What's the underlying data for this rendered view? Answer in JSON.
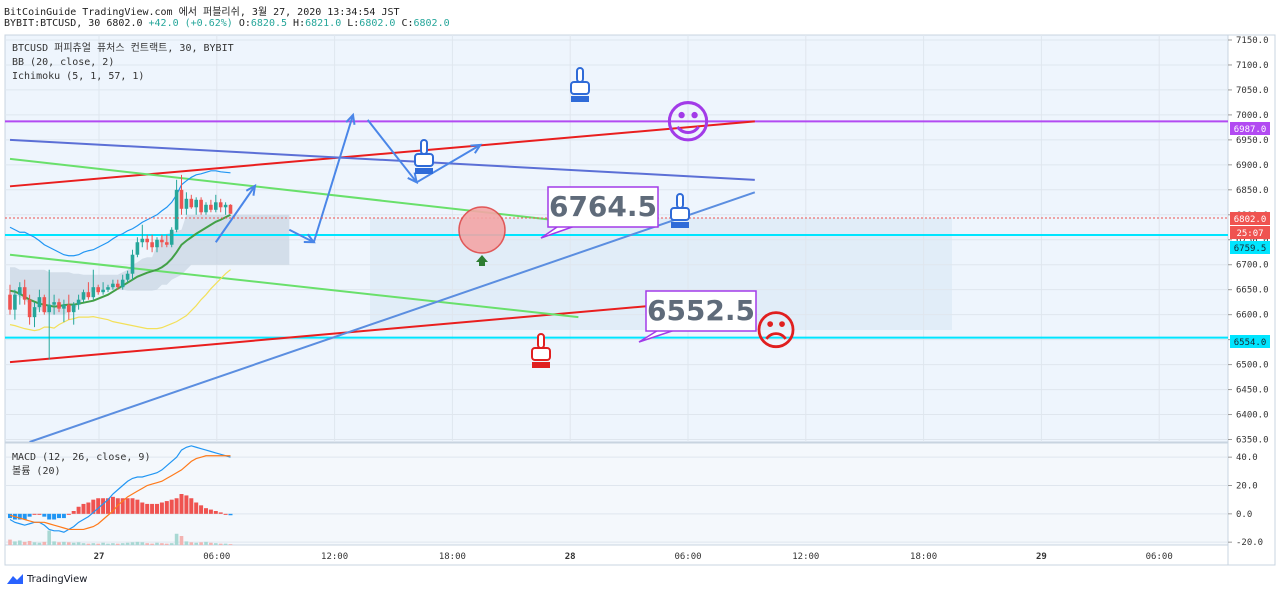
{
  "header": {
    "line1": "BitCoinGuide TradingView.com 에서 퍼블리쉬, 3월 27, 2020 13:34:54 JST",
    "symbol": "BYBIT:BTCUSD, 30",
    "last": "6802.0",
    "change": "+42.0 (+0.62%)",
    "o_label": "O:",
    "o": "6820.5",
    "h_label": "H:",
    "h": "6821.0",
    "l_label": "L:",
    "l": "6802.0",
    "c_label": "C:",
    "c": "6802.0"
  },
  "legend": {
    "title": "BTCUSD 퍼피츄얼 퓨처스 컨트랙트, 30, BYBIT",
    "bb": "BB (20, close, 2)",
    "ichimoku": "Ichimoku (5, 1, 57, 1)",
    "macd": "MACD (12, 26, close, 9)",
    "volume": "볼륨 (20)"
  },
  "annotations": {
    "box_upper": "6764.5",
    "box_lower": "6552.5",
    "smiley": "☺",
    "frowny": "☹"
  },
  "price_badges": {
    "level_6987": "6987.0",
    "current": "6802.0",
    "countdown": "25:07",
    "level_6759": "6759.5",
    "level_6554": "6554.0"
  },
  "footer": {
    "brand": "TradingView"
  },
  "colors": {
    "up": "#26a69a",
    "down": "#ef5350",
    "bb": "#2196f3",
    "ichi": "#43a047",
    "cyan": "#00e5ff",
    "purple": "#b24af2",
    "red": "#e91e1e",
    "trend": "#4a7be0"
  },
  "chart_data": [
    {
      "type": "candlestick",
      "title": "BTCUSD 퍼피츄얼 퓨처스 컨트랙트, 30, BYBIT",
      "x_ticks": [
        "27",
        "06:00",
        "12:00",
        "18:00",
        "28",
        "06:00",
        "12:00",
        "18:00",
        "29",
        "06:00"
      ],
      "y_ticks": [
        7150,
        7100,
        7050,
        7000,
        6950,
        6900,
        6850,
        6800,
        6750,
        6700,
        6650,
        6600,
        6550,
        6500,
        6450,
        6400,
        6350
      ],
      "ylim": [
        6345,
        7160
      ],
      "bars_per_day": 48,
      "ohlc": [
        [
          6640,
          6660,
          6600,
          6610
        ],
        [
          6610,
          6650,
          6590,
          6640
        ],
        [
          6640,
          6665,
          6620,
          6655
        ],
        [
          6655,
          6670,
          6620,
          6630
        ],
        [
          6630,
          6640,
          6580,
          6595
        ],
        [
          6595,
          6625,
          6575,
          6615
        ],
        [
          6615,
          6650,
          6605,
          6635
        ],
        [
          6635,
          6640,
          6600,
          6605
        ],
        [
          6605,
          6690,
          6510,
          6620
        ],
        [
          6620,
          6640,
          6600,
          6625
        ],
        [
          6625,
          6632,
          6605,
          6612
        ],
        [
          6612,
          6630,
          6585,
          6620
        ],
        [
          6620,
          6640,
          6590,
          6605
        ],
        [
          6605,
          6625,
          6580,
          6620
        ],
        [
          6620,
          6640,
          6610,
          6630
        ],
        [
          6630,
          6650,
          6625,
          6645
        ],
        [
          6645,
          6665,
          6630,
          6635
        ],
        [
          6635,
          6690,
          6630,
          6655
        ],
        [
          6655,
          6660,
          6640,
          6645
        ],
        [
          6645,
          6665,
          6640,
          6650
        ],
        [
          6650,
          6660,
          6645,
          6655
        ],
        [
          6655,
          6670,
          6650,
          6662
        ],
        [
          6662,
          6670,
          6650,
          6655
        ],
        [
          6655,
          6680,
          6650,
          6670
        ],
        [
          6670,
          6688,
          6665,
          6682
        ],
        [
          6682,
          6730,
          6670,
          6720
        ],
        [
          6720,
          6755,
          6715,
          6745
        ],
        [
          6745,
          6780,
          6735,
          6752
        ],
        [
          6752,
          6760,
          6730,
          6745
        ],
        [
          6745,
          6760,
          6725,
          6735
        ],
        [
          6735,
          6755,
          6725,
          6750
        ],
        [
          6750,
          6760,
          6735,
          6745
        ],
        [
          6745,
          6760,
          6735,
          6740
        ],
        [
          6740,
          6775,
          6735,
          6770
        ],
        [
          6770,
          6870,
          6765,
          6850
        ],
        [
          6850,
          6880,
          6800,
          6812
        ],
        [
          6812,
          6845,
          6800,
          6832
        ],
        [
          6832,
          6840,
          6812,
          6815
        ],
        [
          6815,
          6835,
          6800,
          6830
        ],
        [
          6830,
          6835,
          6800,
          6805
        ],
        [
          6805,
          6825,
          6800,
          6820
        ],
        [
          6820,
          6830,
          6805,
          6810
        ],
        [
          6810,
          6840,
          6805,
          6825
        ],
        [
          6825,
          6832,
          6805,
          6815
        ],
        [
          6815,
          6825,
          6800,
          6820
        ],
        [
          6820,
          6821,
          6802,
          6802
        ]
      ],
      "bollinger": {
        "upper": [
          6775,
          6770,
          6765,
          6765,
          6760,
          6755,
          6748,
          6740,
          6735,
          6730,
          6725,
          6720,
          6718,
          6718,
          6720,
          6725,
          6728,
          6730,
          6735,
          6740,
          6745,
          6752,
          6758,
          6762,
          6768,
          6772,
          6778,
          6785,
          6790,
          6795,
          6800,
          6808,
          6815,
          6825,
          6840,
          6860,
          6868,
          6875,
          6880,
          6882,
          6885,
          6888,
          6888,
          6886,
          6885,
          6884
        ],
        "basis": [
          6648,
          6646,
          6642,
          6636,
          6630,
          6626,
          6622,
          6620,
          6618,
          6616,
          6617,
          6619,
          6620,
          6620,
          6622,
          6624,
          6626,
          6628,
          6632,
          6636,
          6640,
          6646,
          6652,
          6658,
          6664,
          6670,
          6676,
          6680,
          6684,
          6687,
          6690,
          6695,
          6702,
          6712,
          6725,
          6740,
          6748,
          6755,
          6762,
          6768,
          6774,
          6780,
          6786,
          6790,
          6795,
          6800
        ],
        "lower": [
          6580,
          6578,
          6575,
          6572,
          6570,
          6568,
          6570,
          6575,
          6575,
          6573,
          6580,
          6585,
          6590,
          6592,
          6595,
          6595,
          6595,
          6596,
          6594,
          6592,
          6590,
          6586,
          6584,
          6582,
          6580,
          6578,
          6576,
          6574,
          6572,
          6572,
          6572,
          6574,
          6578,
          6582,
          6586,
          6592,
          6598,
          6608,
          6618,
          6630,
          6640,
          6652,
          6662,
          6672,
          6682,
          6690
        ]
      },
      "ichimoku_cloud": {
        "top": [
          6695,
          6695,
          6690,
          6690,
          6690,
          6690,
          6690,
          6690,
          6685,
          6685,
          6685,
          6685,
          6685,
          6682,
          6682,
          6680,
          6680,
          6680,
          6680,
          6680,
          6680,
          6680,
          6680,
          6685,
          6690,
          6700,
          6705,
          6712,
          6715,
          6715,
          6740,
          6760,
          6762,
          6765,
          6768,
          6770,
          6800,
          6800,
          6800,
          6800,
          6800,
          6800,
          6800,
          6800,
          6800,
          6800,
          6800,
          6800,
          6800,
          6800,
          6800,
          6800,
          6800,
          6800,
          6800,
          6800,
          6800,
          6800
        ],
        "bottom": [
          6640,
          6640,
          6635,
          6630,
          6620,
          6610,
          6610,
          6605,
          6600,
          6600,
          6600,
          6600,
          6605,
          6610,
          6620,
          6630,
          6640,
          6650,
          6650,
          6650,
          6650,
          6650,
          6650,
          6650,
          6648,
          6648,
          6648,
          6648,
          6648,
          6648,
          6650,
          6660,
          6660,
          6670,
          6675,
          6680,
          6690,
          6700,
          6700,
          6700,
          6700,
          6700,
          6700,
          6700,
          6700,
          6700,
          6700,
          6700,
          6700,
          6700,
          6700,
          6700,
          6700,
          6700,
          6700,
          6700,
          6700,
          6700
        ]
      },
      "horizontal_levels": [
        {
          "name": "purple",
          "value": 6987,
          "color": "#b24af2"
        },
        {
          "name": "cyan-upper",
          "value": 6759.5,
          "color": "#00e5ff"
        },
        {
          "name": "cyan-lower",
          "value": 6554,
          "color": "#00e5ff"
        }
      ],
      "trendlines": [
        {
          "name": "red-upper",
          "from": [
            0,
            6857
          ],
          "to": [
            152,
            6987
          ],
          "color": "#e91e1e"
        },
        {
          "name": "red-lower",
          "from": [
            0,
            6505
          ],
          "to": [
            152,
            6636
          ],
          "color": "#e91e1e"
        },
        {
          "name": "blue-upper",
          "from": [
            0,
            6950
          ],
          "to": [
            152,
            6870
          ],
          "color": "#5b6fd6"
        },
        {
          "name": "green-upper",
          "from": [
            0,
            6912
          ],
          "to": [
            116,
            6784
          ],
          "color": "#69e06b"
        },
        {
          "name": "green-lower",
          "from": [
            0,
            6720
          ],
          "to": [
            116,
            6595
          ],
          "color": "#69e06b"
        },
        {
          "name": "blue-rising",
          "from": [
            4,
            6345
          ],
          "to": [
            152,
            6845
          ],
          "color": "#5b8ee0"
        }
      ],
      "projection_path": [
        [
          42,
          6745
        ],
        [
          50,
          6858
        ],
        [
          57,
          6770
        ],
        [
          62,
          6745
        ],
        [
          70,
          7000
        ],
        [
          73,
          6990
        ],
        [
          83,
          6865
        ],
        [
          96,
          6940
        ]
      ]
    },
    {
      "type": "macd",
      "title": "MACD (12, 26, close, 9)",
      "y_ticks": [
        40,
        20,
        0,
        -20
      ],
      "ylim": [
        -22,
        50
      ],
      "macd": [
        -4,
        -6,
        -7,
        -8,
        -7,
        -6,
        -6,
        -8,
        -11,
        -12,
        -12,
        -13,
        -11,
        -9,
        -6,
        -4,
        -2,
        1,
        4,
        7,
        10,
        14,
        17,
        20,
        23,
        25,
        26,
        26,
        27,
        28,
        29,
        31,
        34,
        37,
        40,
        45,
        47,
        48,
        47,
        46,
        45,
        44,
        43,
        42,
        41,
        40
      ],
      "signal": [
        -1,
        -2,
        -3,
        -4,
        -5,
        -6,
        -6,
        -6,
        -7,
        -8,
        -9,
        -10,
        -11,
        -11,
        -11,
        -11,
        -10,
        -9,
        -7,
        -4,
        -1,
        2,
        6,
        9,
        12,
        14,
        16,
        18,
        20,
        21,
        22,
        23,
        25,
        27,
        29,
        31,
        34,
        37,
        39,
        40,
        41,
        41,
        41,
        41,
        41,
        41
      ],
      "histogram": [
        -3,
        -4,
        -4,
        -4,
        -2,
        0,
        0,
        -2,
        -4,
        -4,
        -3,
        -3,
        0,
        2,
        5,
        7,
        8,
        10,
        11,
        11,
        11,
        12,
        11,
        11,
        11,
        11,
        10,
        8,
        7,
        7,
        7,
        8,
        9,
        10,
        11,
        14,
        13,
        11,
        8,
        6,
        4,
        3,
        2,
        1,
        0,
        -1
      ],
      "volume": [
        12,
        8,
        10,
        7,
        9,
        6,
        5,
        7,
        32,
        8,
        6,
        7,
        6,
        5,
        6,
        4,
        3,
        4,
        3,
        5,
        3,
        4,
        3,
        4,
        5,
        6,
        7,
        6,
        4,
        3,
        5,
        4,
        3,
        4,
        25,
        20,
        8,
        6,
        5,
        6,
        7,
        5,
        4,
        3,
        3,
        2
      ]
    }
  ]
}
